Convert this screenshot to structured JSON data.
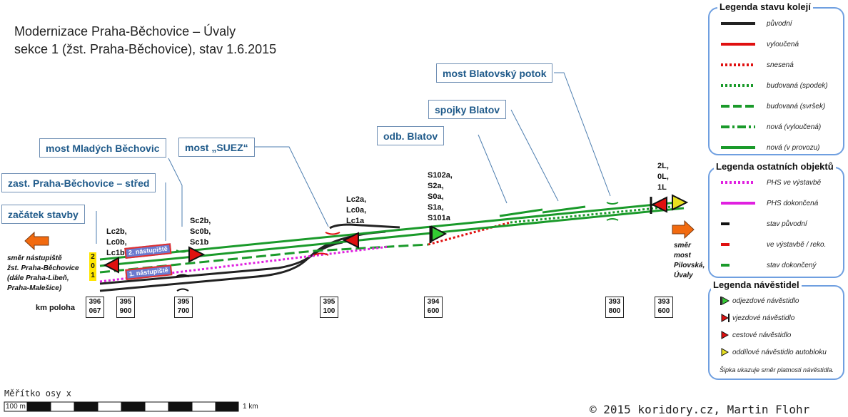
{
  "title": {
    "line1": "Modernizace Praha-Běchovice – Úvaly",
    "line2": "sekce 1 (žst. Praha-Běchovice), stav 1.6.2015"
  },
  "callouts": {
    "zacatek": "začátek stavby",
    "zastavka": "zast. Praha-Běchovice – střed",
    "most_mladych": "most Mladých Běchovic",
    "most_suez": "most „SUEZ“",
    "odb_blatov": "odb. Blatov",
    "spojky_blatov": "spojky Blatov",
    "most_blatovsky": "most Blatovský potok"
  },
  "signals": {
    "left_group": "Lc2b,\nLc0b,\nLc1b",
    "sc_group": "Sc2b,\nSc0b,\nSc1b",
    "lc_a_group": "Lc2a,\nLc0a,\nLc1a",
    "s_group": "S102a,\nS2a,\nS0a,\nS1a,\nS101a",
    "l_group": "2L,\n0L,\n1L"
  },
  "platforms": {
    "p2": "2. nástupiště",
    "p1": "1. nástupiště"
  },
  "track_numbers": {
    "t2": "2",
    "t0": "0",
    "t1": "1"
  },
  "directions": {
    "left": "směr nástupiště\nžst. Praha-Běchovice\n(dále Praha-Libeň,\nPraha-Malešice)",
    "right": "směr\nmost\nPilovská,\nÚvaly"
  },
  "km": {
    "label": "km poloha",
    "marks": [
      {
        "a": "396",
        "b": "067"
      },
      {
        "a": "395",
        "b": "900"
      },
      {
        "a": "395",
        "b": "700"
      },
      {
        "a": "395",
        "b": "100"
      },
      {
        "a": "394",
        "b": "600"
      },
      {
        "a": "393",
        "b": "800"
      },
      {
        "a": "393",
        "b": "600"
      }
    ]
  },
  "legend_tracks": {
    "title": "Legenda stavu kolejí",
    "items": [
      {
        "label": "původní",
        "color": "#222222",
        "style": "solid"
      },
      {
        "label": "vyloučená",
        "color": "#e01010",
        "style": "solid"
      },
      {
        "label": "snesená",
        "color": "#e01010",
        "style": "dotted"
      },
      {
        "label": "budovaná (spodek)",
        "color": "#1a9a2a",
        "style": "dotted"
      },
      {
        "label": "budovaná (svršek)",
        "color": "#1a9a2a",
        "style": "dashed"
      },
      {
        "label": "nová (vyloučená)",
        "color": "#1a9a2a",
        "style": "dashdot"
      },
      {
        "label": "nová (v provozu)",
        "color": "#1a9a2a",
        "style": "solid"
      }
    ]
  },
  "legend_objects": {
    "title": "Legenda ostatních objektů",
    "items": [
      {
        "label": "PHS ve výstavbě",
        "color": "#e020e0",
        "style": "dotted"
      },
      {
        "label": "PHS dokončená",
        "color": "#e020e0",
        "style": "solid"
      },
      {
        "label": "stav původní",
        "color": "#111111",
        "style": "short"
      },
      {
        "label": "ve výstavbě / reko.",
        "color": "#e01010",
        "style": "short"
      },
      {
        "label": "stav dokončený",
        "color": "#1a9a2a",
        "style": "short"
      }
    ]
  },
  "legend_signals": {
    "title": "Legenda návěstidel",
    "items": [
      {
        "label": "odjezdové návěstidlo",
        "icon": "departure-signal-icon"
      },
      {
        "label": "vjezdové návěstidlo",
        "icon": "entry-signal-icon"
      },
      {
        "label": "cestové návěstidlo",
        "icon": "route-signal-icon"
      },
      {
        "label": "oddílové návěstidlo autobloku",
        "icon": "block-signal-icon"
      }
    ],
    "note": "Šipka ukazuje směr platnosti návěstidla."
  },
  "scale": {
    "title": "Měřítko osy x",
    "left_label": "100 m",
    "right_label": "1 km"
  },
  "copyright": "© 2015 koridory.cz, Martin Flohr",
  "colors": {
    "green": "#1a9a2a",
    "red": "#e01010",
    "black": "#222222",
    "magenta": "#e020e0",
    "callout_border": "#6f8fb4",
    "callout_text": "#1f5a8a",
    "legend_border": "#6f9fe0",
    "arrow_orange": "#f26a0f"
  }
}
